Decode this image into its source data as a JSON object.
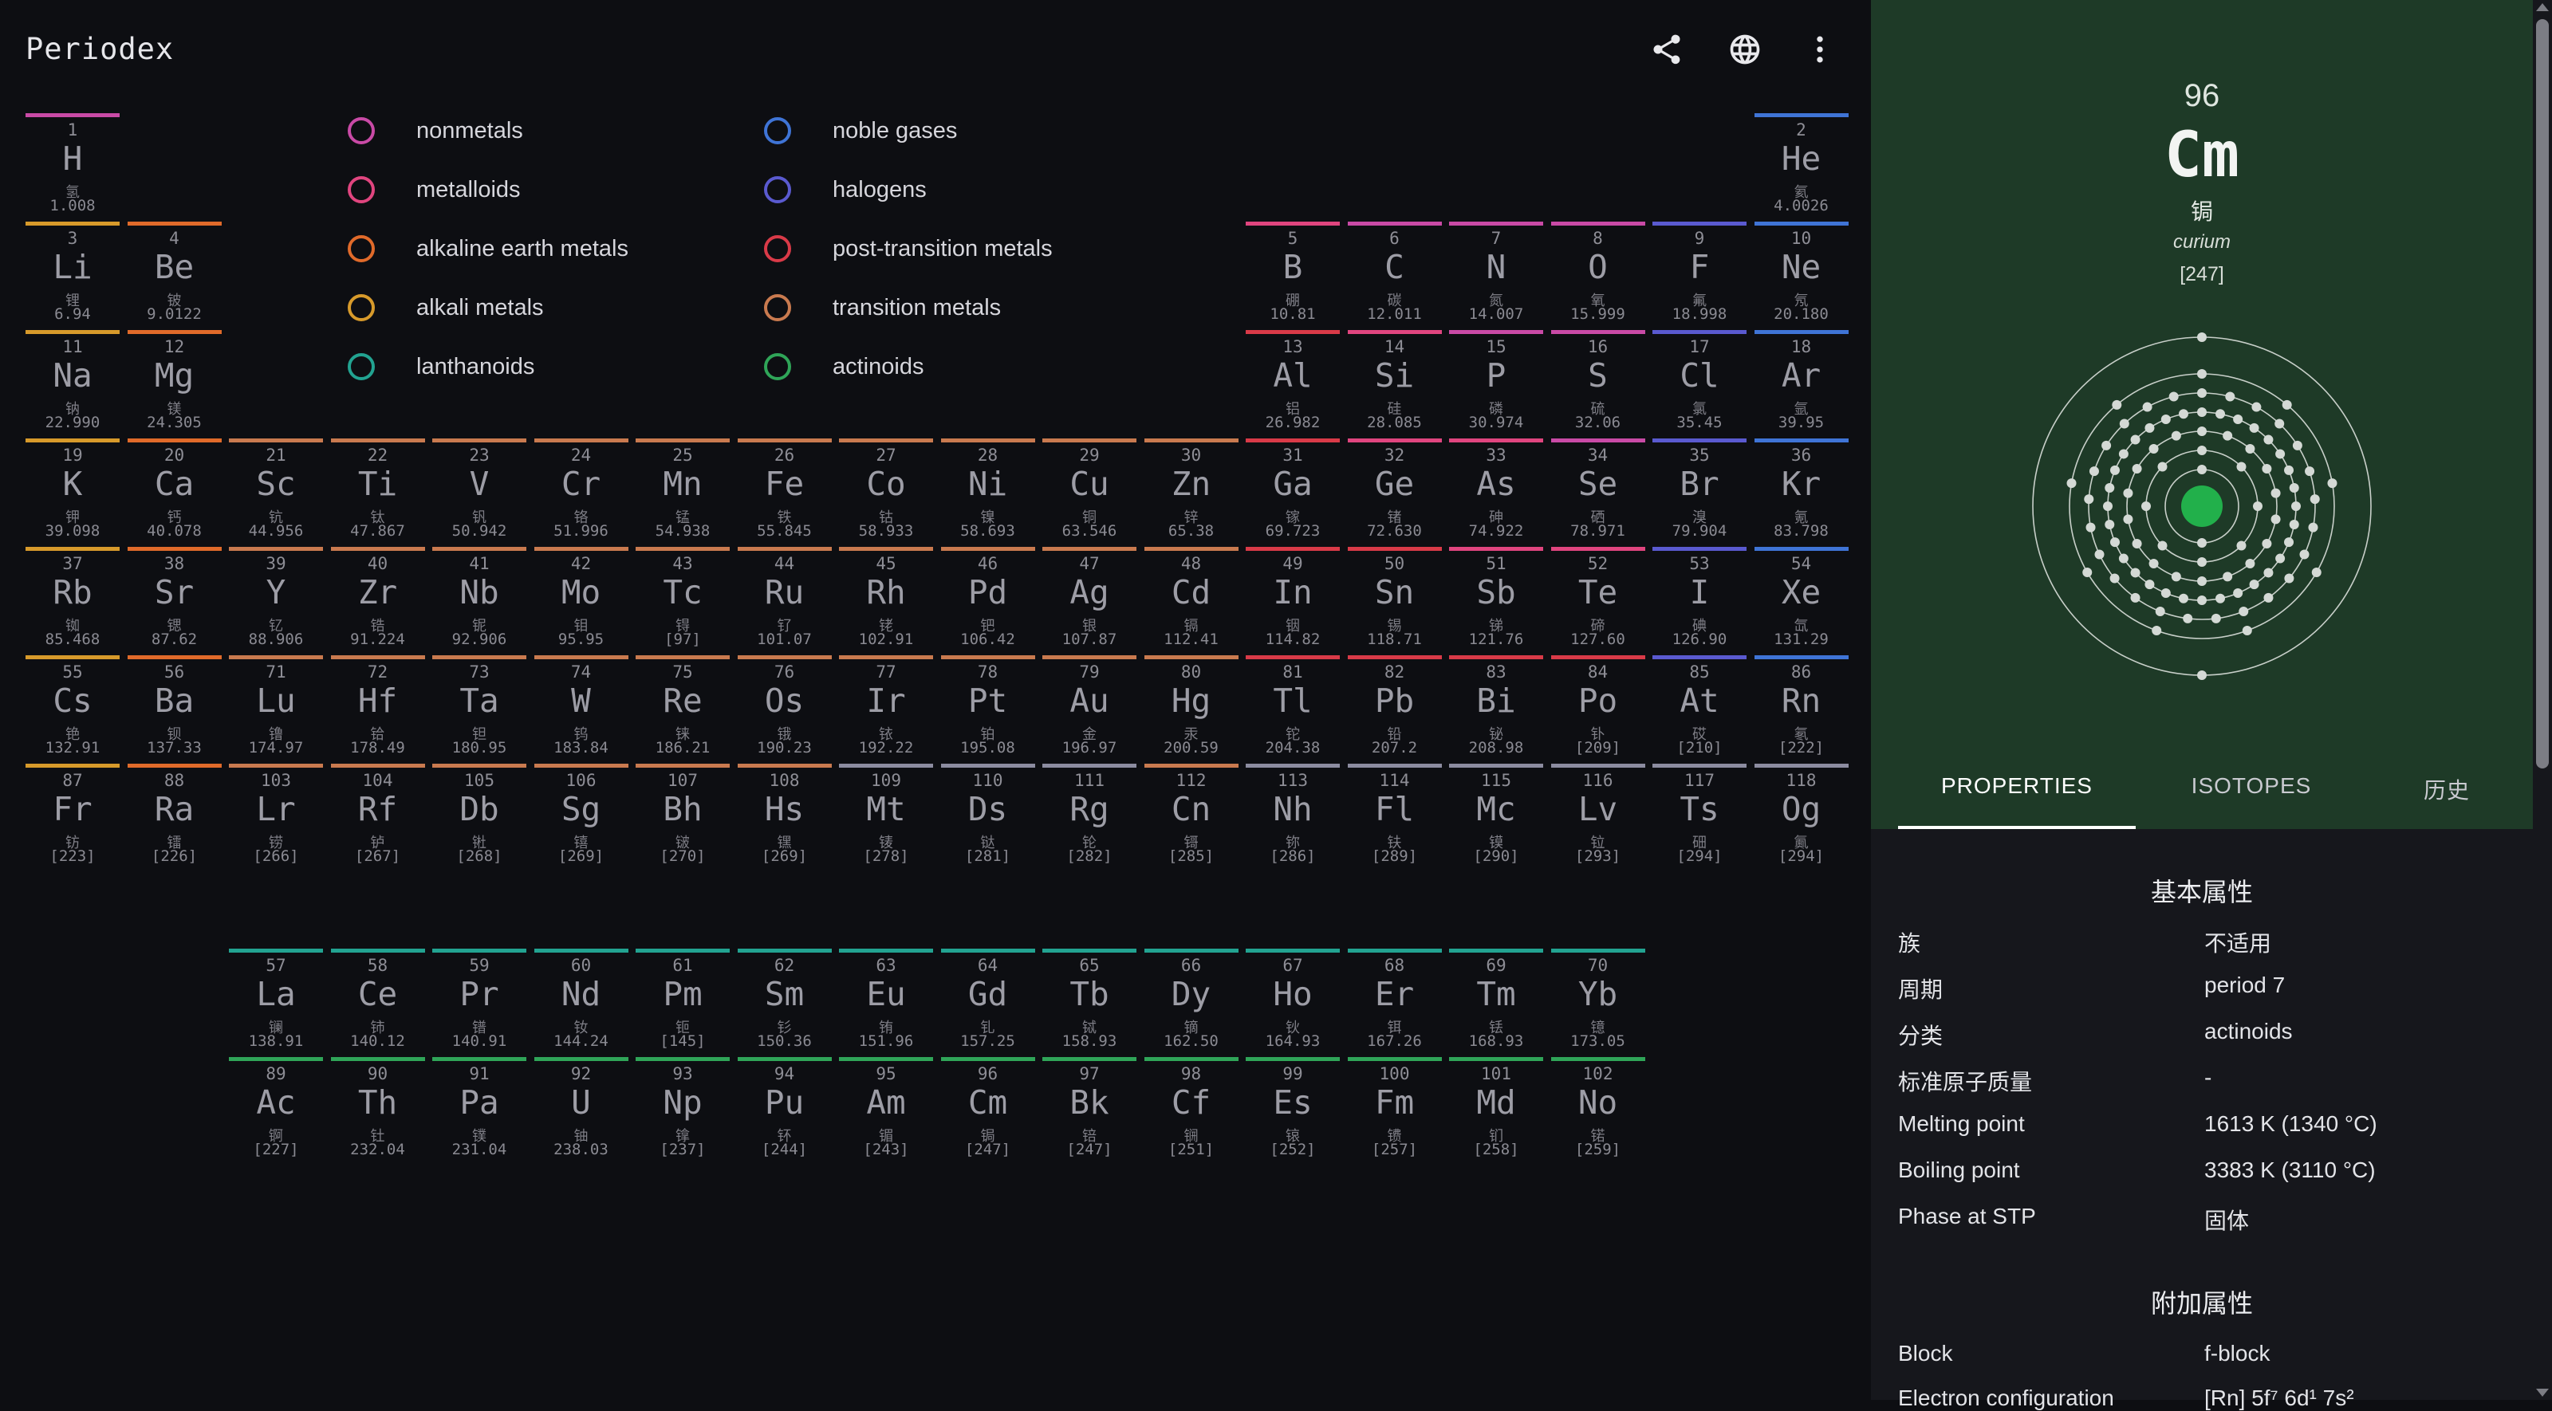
{
  "app": {
    "title": "Periodex"
  },
  "toolbar": {
    "share_icon": "share-icon",
    "language_icon": "globe-icon",
    "more_icon": "more-vert-icon"
  },
  "legend": [
    {
      "label": "nonmetals",
      "color": "#c94aa6"
    },
    {
      "label": "metalloids",
      "color": "#e0457f"
    },
    {
      "label": "alkaline earth metals",
      "color": "#e06a2a"
    },
    {
      "label": "alkali metals",
      "color": "#d79a2b"
    },
    {
      "label": "lanthanoids",
      "color": "#22a391"
    },
    {
      "label": "noble gases",
      "color": "#3f74d6"
    },
    {
      "label": "halogens",
      "color": "#5a5ad0"
    },
    {
      "label": "post-transition metals",
      "color": "#d93a48"
    },
    {
      "label": "transition metals",
      "color": "#c97a4f"
    },
    {
      "label": "actinoids",
      "color": "#2fa558"
    }
  ],
  "elements": [
    {
      "n": "1",
      "s": "H",
      "z": "氢",
      "m": "1.008",
      "c": "nm",
      "g": 1,
      "p": 1
    },
    {
      "n": "2",
      "s": "He",
      "z": "氦",
      "m": "4.0026",
      "c": "ng",
      "g": 18,
      "p": 1
    },
    {
      "n": "3",
      "s": "Li",
      "z": "锂",
      "m": "6.94",
      "c": "am",
      "g": 1,
      "p": 2
    },
    {
      "n": "4",
      "s": "Be",
      "z": "铍",
      "m": "9.0122",
      "c": "ae",
      "g": 2,
      "p": 2
    },
    {
      "n": "5",
      "s": "B",
      "z": "硼",
      "m": "10.81",
      "c": "ml",
      "g": 13,
      "p": 2
    },
    {
      "n": "6",
      "s": "C",
      "z": "碳",
      "m": "12.011",
      "c": "nm",
      "g": 14,
      "p": 2
    },
    {
      "n": "7",
      "s": "N",
      "z": "氮",
      "m": "14.007",
      "c": "nm",
      "g": 15,
      "p": 2
    },
    {
      "n": "8",
      "s": "O",
      "z": "氧",
      "m": "15.999",
      "c": "nm",
      "g": 16,
      "p": 2
    },
    {
      "n": "9",
      "s": "F",
      "z": "氟",
      "m": "18.998",
      "c": "hl",
      "g": 17,
      "p": 2
    },
    {
      "n": "10",
      "s": "Ne",
      "z": "氖",
      "m": "20.180",
      "c": "ng",
      "g": 18,
      "p": 2
    },
    {
      "n": "11",
      "s": "Na",
      "z": "钠",
      "m": "22.990",
      "c": "am",
      "g": 1,
      "p": 3
    },
    {
      "n": "12",
      "s": "Mg",
      "z": "镁",
      "m": "24.305",
      "c": "ae",
      "g": 2,
      "p": 3
    },
    {
      "n": "13",
      "s": "Al",
      "z": "铝",
      "m": "26.982",
      "c": "pt",
      "g": 13,
      "p": 3
    },
    {
      "n": "14",
      "s": "Si",
      "z": "硅",
      "m": "28.085",
      "c": "ml",
      "g": 14,
      "p": 3
    },
    {
      "n": "15",
      "s": "P",
      "z": "磷",
      "m": "30.974",
      "c": "nm",
      "g": 15,
      "p": 3
    },
    {
      "n": "16",
      "s": "S",
      "z": "硫",
      "m": "32.06",
      "c": "nm",
      "g": 16,
      "p": 3
    },
    {
      "n": "17",
      "s": "Cl",
      "z": "氯",
      "m": "35.45",
      "c": "hl",
      "g": 17,
      "p": 3
    },
    {
      "n": "18",
      "s": "Ar",
      "z": "氩",
      "m": "39.95",
      "c": "ng",
      "g": 18,
      "p": 3
    },
    {
      "n": "19",
      "s": "K",
      "z": "钾",
      "m": "39.098",
      "c": "am",
      "g": 1,
      "p": 4
    },
    {
      "n": "20",
      "s": "Ca",
      "z": "钙",
      "m": "40.078",
      "c": "ae",
      "g": 2,
      "p": 4
    },
    {
      "n": "21",
      "s": "Sc",
      "z": "钪",
      "m": "44.956",
      "c": "tm",
      "g": 3,
      "p": 4
    },
    {
      "n": "22",
      "s": "Ti",
      "z": "钛",
      "m": "47.867",
      "c": "tm",
      "g": 4,
      "p": 4
    },
    {
      "n": "23",
      "s": "V",
      "z": "钒",
      "m": "50.942",
      "c": "tm",
      "g": 5,
      "p": 4
    },
    {
      "n": "24",
      "s": "Cr",
      "z": "铬",
      "m": "51.996",
      "c": "tm",
      "g": 6,
      "p": 4
    },
    {
      "n": "25",
      "s": "Mn",
      "z": "锰",
      "m": "54.938",
      "c": "tm",
      "g": 7,
      "p": 4
    },
    {
      "n": "26",
      "s": "Fe",
      "z": "铁",
      "m": "55.845",
      "c": "tm",
      "g": 8,
      "p": 4
    },
    {
      "n": "27",
      "s": "Co",
      "z": "钴",
      "m": "58.933",
      "c": "tm",
      "g": 9,
      "p": 4
    },
    {
      "n": "28",
      "s": "Ni",
      "z": "镍",
      "m": "58.693",
      "c": "tm",
      "g": 10,
      "p": 4
    },
    {
      "n": "29",
      "s": "Cu",
      "z": "铜",
      "m": "63.546",
      "c": "tm",
      "g": 11,
      "p": 4
    },
    {
      "n": "30",
      "s": "Zn",
      "z": "锌",
      "m": "65.38",
      "c": "tm",
      "g": 12,
      "p": 4
    },
    {
      "n": "31",
      "s": "Ga",
      "z": "镓",
      "m": "69.723",
      "c": "pt",
      "g": 13,
      "p": 4
    },
    {
      "n": "32",
      "s": "Ge",
      "z": "锗",
      "m": "72.630",
      "c": "ml",
      "g": 14,
      "p": 4
    },
    {
      "n": "33",
      "s": "As",
      "z": "砷",
      "m": "74.922",
      "c": "ml",
      "g": 15,
      "p": 4
    },
    {
      "n": "34",
      "s": "Se",
      "z": "硒",
      "m": "78.971",
      "c": "nm",
      "g": 16,
      "p": 4
    },
    {
      "n": "35",
      "s": "Br",
      "z": "溴",
      "m": "79.904",
      "c": "hl",
      "g": 17,
      "p": 4
    },
    {
      "n": "36",
      "s": "Kr",
      "z": "氪",
      "m": "83.798",
      "c": "ng",
      "g": 18,
      "p": 4
    },
    {
      "n": "37",
      "s": "Rb",
      "z": "铷",
      "m": "85.468",
      "c": "am",
      "g": 1,
      "p": 5
    },
    {
      "n": "38",
      "s": "Sr",
      "z": "锶",
      "m": "87.62",
      "c": "ae",
      "g": 2,
      "p": 5
    },
    {
      "n": "39",
      "s": "Y",
      "z": "钇",
      "m": "88.906",
      "c": "tm",
      "g": 3,
      "p": 5
    },
    {
      "n": "40",
      "s": "Zr",
      "z": "锆",
      "m": "91.224",
      "c": "tm",
      "g": 4,
      "p": 5
    },
    {
      "n": "41",
      "s": "Nb",
      "z": "铌",
      "m": "92.906",
      "c": "tm",
      "g": 5,
      "p": 5
    },
    {
      "n": "42",
      "s": "Mo",
      "z": "钼",
      "m": "95.95",
      "c": "tm",
      "g": 6,
      "p": 5
    },
    {
      "n": "43",
      "s": "Tc",
      "z": "锝",
      "m": "[97]",
      "c": "tm",
      "g": 7,
      "p": 5
    },
    {
      "n": "44",
      "s": "Ru",
      "z": "钌",
      "m": "101.07",
      "c": "tm",
      "g": 8,
      "p": 5
    },
    {
      "n": "45",
      "s": "Rh",
      "z": "铑",
      "m": "102.91",
      "c": "tm",
      "g": 9,
      "p": 5
    },
    {
      "n": "46",
      "s": "Pd",
      "z": "钯",
      "m": "106.42",
      "c": "tm",
      "g": 10,
      "p": 5
    },
    {
      "n": "47",
      "s": "Ag",
      "z": "银",
      "m": "107.87",
      "c": "tm",
      "g": 11,
      "p": 5
    },
    {
      "n": "48",
      "s": "Cd",
      "z": "镉",
      "m": "112.41",
      "c": "tm",
      "g": 12,
      "p": 5
    },
    {
      "n": "49",
      "s": "In",
      "z": "铟",
      "m": "114.82",
      "c": "pt",
      "g": 13,
      "p": 5
    },
    {
      "n": "50",
      "s": "Sn",
      "z": "锡",
      "m": "118.71",
      "c": "pt",
      "g": 14,
      "p": 5
    },
    {
      "n": "51",
      "s": "Sb",
      "z": "锑",
      "m": "121.76",
      "c": "ml",
      "g": 15,
      "p": 5
    },
    {
      "n": "52",
      "s": "Te",
      "z": "碲",
      "m": "127.60",
      "c": "ml",
      "g": 16,
      "p": 5
    },
    {
      "n": "53",
      "s": "I",
      "z": "碘",
      "m": "126.90",
      "c": "hl",
      "g": 17,
      "p": 5
    },
    {
      "n": "54",
      "s": "Xe",
      "z": "氙",
      "m": "131.29",
      "c": "ng",
      "g": 18,
      "p": 5
    },
    {
      "n": "55",
      "s": "Cs",
      "z": "铯",
      "m": "132.91",
      "c": "am",
      "g": 1,
      "p": 6
    },
    {
      "n": "56",
      "s": "Ba",
      "z": "钡",
      "m": "137.33",
      "c": "ae",
      "g": 2,
      "p": 6
    },
    {
      "n": "71",
      "s": "Lu",
      "z": "镥",
      "m": "174.97",
      "c": "tm",
      "g": 3,
      "p": 6
    },
    {
      "n": "72",
      "s": "Hf",
      "z": "铪",
      "m": "178.49",
      "c": "tm",
      "g": 4,
      "p": 6
    },
    {
      "n": "73",
      "s": "Ta",
      "z": "钽",
      "m": "180.95",
      "c": "tm",
      "g": 5,
      "p": 6
    },
    {
      "n": "74",
      "s": "W",
      "z": "钨",
      "m": "183.84",
      "c": "tm",
      "g": 6,
      "p": 6
    },
    {
      "n": "75",
      "s": "Re",
      "z": "铼",
      "m": "186.21",
      "c": "tm",
      "g": 7,
      "p": 6
    },
    {
      "n": "76",
      "s": "Os",
      "z": "锇",
      "m": "190.23",
      "c": "tm",
      "g": 8,
      "p": 6
    },
    {
      "n": "77",
      "s": "Ir",
      "z": "铱",
      "m": "192.22",
      "c": "tm",
      "g": 9,
      "p": 6
    },
    {
      "n": "78",
      "s": "Pt",
      "z": "铂",
      "m": "195.08",
      "c": "tm",
      "g": 10,
      "p": 6
    },
    {
      "n": "79",
      "s": "Au",
      "z": "金",
      "m": "196.97",
      "c": "tm",
      "g": 11,
      "p": 6
    },
    {
      "n": "80",
      "s": "Hg",
      "z": "汞",
      "m": "200.59",
      "c": "tm",
      "g": 12,
      "p": 6
    },
    {
      "n": "81",
      "s": "Tl",
      "z": "铊",
      "m": "204.38",
      "c": "pt",
      "g": 13,
      "p": 6
    },
    {
      "n": "82",
      "s": "Pb",
      "z": "铅",
      "m": "207.2",
      "c": "pt",
      "g": 14,
      "p": 6
    },
    {
      "n": "83",
      "s": "Bi",
      "z": "铋",
      "m": "208.98",
      "c": "pt",
      "g": 15,
      "p": 6
    },
    {
      "n": "84",
      "s": "Po",
      "z": "钋",
      "m": "[209]",
      "c": "pt",
      "g": 16,
      "p": 6
    },
    {
      "n": "85",
      "s": "At",
      "z": "砹",
      "m": "[210]",
      "c": "hl",
      "g": 17,
      "p": 6
    },
    {
      "n": "86",
      "s": "Rn",
      "z": "氡",
      "m": "[222]",
      "c": "ng",
      "g": 18,
      "p": 6
    },
    {
      "n": "87",
      "s": "Fr",
      "z": "钫",
      "m": "[223]",
      "c": "am",
      "g": 1,
      "p": 7
    },
    {
      "n": "88",
      "s": "Ra",
      "z": "镭",
      "m": "[226]",
      "c": "ae",
      "g": 2,
      "p": 7
    },
    {
      "n": "103",
      "s": "Lr",
      "z": "铹",
      "m": "[266]",
      "c": "tm",
      "g": 3,
      "p": 7
    },
    {
      "n": "104",
      "s": "Rf",
      "z": "𬬻",
      "m": "[267]",
      "c": "tm",
      "g": 4,
      "p": 7
    },
    {
      "n": "105",
      "s": "Db",
      "z": "𬭊",
      "m": "[268]",
      "c": "tm",
      "g": 5,
      "p": 7
    },
    {
      "n": "106",
      "s": "Sg",
      "z": "𬭳",
      "m": "[269]",
      "c": "tm",
      "g": 6,
      "p": 7
    },
    {
      "n": "107",
      "s": "Bh",
      "z": "𬭛",
      "m": "[270]",
      "c": "tm",
      "g": 7,
      "p": 7
    },
    {
      "n": "108",
      "s": "Hs",
      "z": "𬭶",
      "m": "[269]",
      "c": "tm",
      "g": 8,
      "p": 7
    },
    {
      "n": "109",
      "s": "Mt",
      "z": "鿏",
      "m": "[278]",
      "c": "un",
      "g": 9,
      "p": 7
    },
    {
      "n": "110",
      "s": "Ds",
      "z": "𫟼",
      "m": "[281]",
      "c": "un",
      "g": 10,
      "p": 7
    },
    {
      "n": "111",
      "s": "Rg",
      "z": "𬬭",
      "m": "[282]",
      "c": "un",
      "g": 11,
      "p": 7
    },
    {
      "n": "112",
      "s": "Cn",
      "z": "鿔",
      "m": "[285]",
      "c": "tm",
      "g": 12,
      "p": 7
    },
    {
      "n": "113",
      "s": "Nh",
      "z": "鿭",
      "m": "[286]",
      "c": "un",
      "g": 13,
      "p": 7
    },
    {
      "n": "114",
      "s": "Fl",
      "z": "𫓧",
      "m": "[289]",
      "c": "un",
      "g": 14,
      "p": 7
    },
    {
      "n": "115",
      "s": "Mc",
      "z": "镆",
      "m": "[290]",
      "c": "un",
      "g": 15,
      "p": 7
    },
    {
      "n": "116",
      "s": "Lv",
      "z": "𫟷",
      "m": "[293]",
      "c": "un",
      "g": 16,
      "p": 7
    },
    {
      "n": "117",
      "s": "Ts",
      "z": "鿬",
      "m": "[294]",
      "c": "un",
      "g": 17,
      "p": 7
    },
    {
      "n": "118",
      "s": "Og",
      "z": "鿫",
      "m": "[294]",
      "c": "un",
      "g": 18,
      "p": 7
    },
    {
      "n": "57",
      "s": "La",
      "z": "镧",
      "m": "138.91",
      "c": "ln",
      "g": 3,
      "p": 9
    },
    {
      "n": "58",
      "s": "Ce",
      "z": "铈",
      "m": "140.12",
      "c": "ln",
      "g": 4,
      "p": 9
    },
    {
      "n": "59",
      "s": "Pr",
      "z": "镨",
      "m": "140.91",
      "c": "ln",
      "g": 5,
      "p": 9
    },
    {
      "n": "60",
      "s": "Nd",
      "z": "钕",
      "m": "144.24",
      "c": "ln",
      "g": 6,
      "p": 9
    },
    {
      "n": "61",
      "s": "Pm",
      "z": "钷",
      "m": "[145]",
      "c": "ln",
      "g": 7,
      "p": 9
    },
    {
      "n": "62",
      "s": "Sm",
      "z": "钐",
      "m": "150.36",
      "c": "ln",
      "g": 8,
      "p": 9
    },
    {
      "n": "63",
      "s": "Eu",
      "z": "铕",
      "m": "151.96",
      "c": "ln",
      "g": 9,
      "p": 9
    },
    {
      "n": "64",
      "s": "Gd",
      "z": "钆",
      "m": "157.25",
      "c": "ln",
      "g": 10,
      "p": 9
    },
    {
      "n": "65",
      "s": "Tb",
      "z": "铽",
      "m": "158.93",
      "c": "ln",
      "g": 11,
      "p": 9
    },
    {
      "n": "66",
      "s": "Dy",
      "z": "镝",
      "m": "162.50",
      "c": "ln",
      "g": 12,
      "p": 9
    },
    {
      "n": "67",
      "s": "Ho",
      "z": "钬",
      "m": "164.93",
      "c": "ln",
      "g": 13,
      "p": 9
    },
    {
      "n": "68",
      "s": "Er",
      "z": "铒",
      "m": "167.26",
      "c": "ln",
      "g": 14,
      "p": 9
    },
    {
      "n": "69",
      "s": "Tm",
      "z": "铥",
      "m": "168.93",
      "c": "ln",
      "g": 15,
      "p": 9
    },
    {
      "n": "70",
      "s": "Yb",
      "z": "镱",
      "m": "173.05",
      "c": "ln",
      "g": 16,
      "p": 9
    },
    {
      "n": "89",
      "s": "Ac",
      "z": "锕",
      "m": "[227]",
      "c": "ac",
      "g": 3,
      "p": 10
    },
    {
      "n": "90",
      "s": "Th",
      "z": "钍",
      "m": "232.04",
      "c": "ac",
      "g": 4,
      "p": 10
    },
    {
      "n": "91",
      "s": "Pa",
      "z": "镤",
      "m": "231.04",
      "c": "ac",
      "g": 5,
      "p": 10
    },
    {
      "n": "92",
      "s": "U",
      "z": "铀",
      "m": "238.03",
      "c": "ac",
      "g": 6,
      "p": 10
    },
    {
      "n": "93",
      "s": "Np",
      "z": "镎",
      "m": "[237]",
      "c": "ac",
      "g": 7,
      "p": 10
    },
    {
      "n": "94",
      "s": "Pu",
      "z": "钚",
      "m": "[244]",
      "c": "ac",
      "g": 8,
      "p": 10
    },
    {
      "n": "95",
      "s": "Am",
      "z": "镅",
      "m": "[243]",
      "c": "ac",
      "g": 9,
      "p": 10
    },
    {
      "n": "96",
      "s": "Cm",
      "z": "锔",
      "m": "[247]",
      "c": "ac",
      "g": 10,
      "p": 10
    },
    {
      "n": "97",
      "s": "Bk",
      "z": "锫",
      "m": "[247]",
      "c": "ac",
      "g": 11,
      "p": 10
    },
    {
      "n": "98",
      "s": "Cf",
      "z": "锎",
      "m": "[251]",
      "c": "ac",
      "g": 12,
      "p": 10
    },
    {
      "n": "99",
      "s": "Es",
      "z": "锿",
      "m": "[252]",
      "c": "ac",
      "g": 13,
      "p": 10
    },
    {
      "n": "100",
      "s": "Fm",
      "z": "镄",
      "m": "[257]",
      "c": "ac",
      "g": 14,
      "p": 10
    },
    {
      "n": "101",
      "s": "Md",
      "z": "钔",
      "m": "[258]",
      "c": "ac",
      "g": 15,
      "p": 10
    },
    {
      "n": "102",
      "s": "No",
      "z": "锘",
      "m": "[259]",
      "c": "ac",
      "g": 16,
      "p": 10
    }
  ],
  "category_colors": {
    "nm": "#c94aa6",
    "ml": "#e0457f",
    "ae": "#e06a2a",
    "am": "#d79a2b",
    "ln": "#22a391",
    "ng": "#3f74d6",
    "hl": "#5a5ad0",
    "pt": "#d93a48",
    "tm": "#c97a4f",
    "ac": "#2fa558",
    "un": "#8c8ca0"
  },
  "selected": {
    "number": "96",
    "symbol": "Cm",
    "name_zh": "锔",
    "name_en": "curium",
    "mass": "[247]",
    "shells": [
      2,
      8,
      18,
      32,
      25,
      9,
      2
    ],
    "accent": "#1e3a27"
  },
  "tabs": [
    {
      "label": "PROPERTIES",
      "active": true
    },
    {
      "label": "ISOTOPES",
      "active": false
    },
    {
      "label": "历史",
      "active": false
    }
  ],
  "properties": {
    "basic_title": "基本属性",
    "basic": [
      {
        "k": "族",
        "v": "不适用"
      },
      {
        "k": "周期",
        "v": "period 7"
      },
      {
        "k": "分类",
        "v": "actinoids"
      },
      {
        "k": "标准原子质量",
        "v": "-"
      },
      {
        "k": "Melting point",
        "v": "1613 K (1340 °C)"
      },
      {
        "k": "Boiling point",
        "v": "3383 K (3110 °C)"
      },
      {
        "k": "Phase at STP",
        "v": "固体"
      }
    ],
    "extra_title": "附加属性",
    "extra": [
      {
        "k": "Block",
        "v": "f-block"
      },
      {
        "k": "Electron configuration",
        "v": "[Rn] 5f⁷ 6d¹ 7s²"
      }
    ]
  }
}
